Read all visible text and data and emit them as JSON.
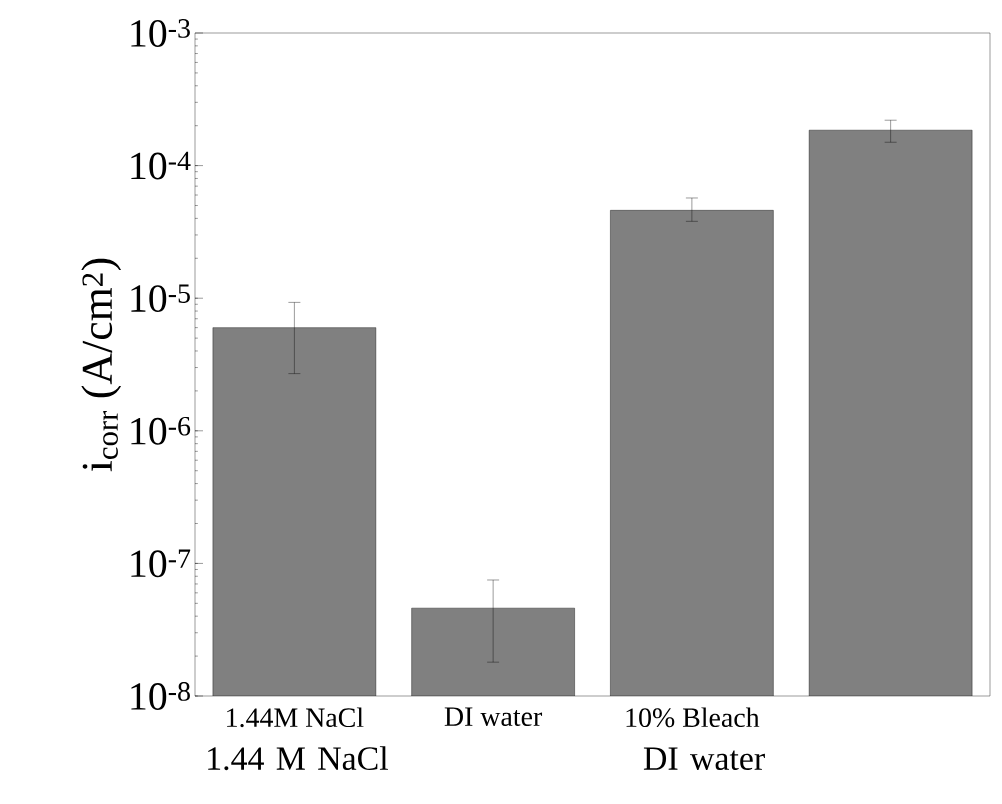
{
  "chart_data": {
    "type": "bar",
    "ylabel": "i$_{corr}$ (A/cm$^{2}$)",
    "categories": [
      "1.44M NaCl",
      "DI water",
      "10% Bleach",
      null
    ],
    "values": [
      6e-06,
      4.6e-08,
      4.6e-05,
      0.000185
    ],
    "errors": [
      [
        2.7e-06,
        9.3e-06
      ],
      [
        1.8e-08,
        7.5e-08
      ],
      [
        3.8e-05,
        5.7e-05
      ],
      [
        0.00015,
        0.00022
      ]
    ],
    "color": "#808080",
    "log": "y",
    "ylim": [
      1e-08,
      0.001
    ],
    "yticks": [
      {
        "value": 1e-08,
        "label": "10$^{-8}$"
      },
      {
        "value": 1e-07,
        "label": "10$^{-7}$"
      },
      {
        "value": 1e-06,
        "label": "10$^{-6}$"
      },
      {
        "value": 1e-05,
        "label": "10$^{-5}$"
      },
      {
        "value": 0.0001,
        "label": "10$^{-4}$"
      },
      {
        "value": 0.001,
        "label": "10$^{-3}$"
      }
    ],
    "annotations": [
      "1.44 M NaCl",
      "DI water"
    ]
  }
}
